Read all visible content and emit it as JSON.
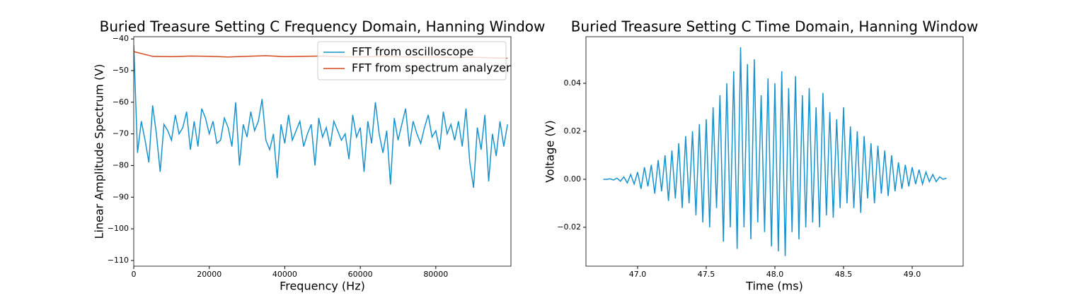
{
  "chart_data": [
    {
      "type": "line",
      "title": "Buried Treasure Setting C Frequency Domain, Hanning Window",
      "xlabel": "Frequency (Hz)",
      "ylabel": "Linear Amplitude Spectrum (V)",
      "xlim": [
        0,
        99900
      ],
      "ylim": [
        -111.8,
        -39.3
      ],
      "xticks": [
        0,
        20000,
        40000,
        60000,
        80000
      ],
      "yticks": [
        {
          "value": -40,
          "label": "−40"
        },
        {
          "value": -50,
          "label": "−50"
        },
        {
          "value": -60,
          "label": "−60"
        },
        {
          "value": -70,
          "label": "−70"
        },
        {
          "value": -80,
          "label": "−80"
        },
        {
          "value": -90,
          "label": "−90"
        },
        {
          "value": -100,
          "label": "−100"
        },
        {
          "value": -110,
          "label": "−110"
        }
      ],
      "legend": "upper right",
      "series": [
        {
          "name": "FFT from oscilloscope",
          "color": "#1693ce",
          "x": [
            0,
            1000,
            2000,
            3000,
            4000,
            5000,
            6000,
            7000,
            8000,
            9000,
            10000,
            11000,
            12000,
            13000,
            14000,
            15000,
            16000,
            17000,
            18000,
            19000,
            20000,
            21000,
            22000,
            23000,
            24000,
            25000,
            26000,
            27000,
            28000,
            29000,
            30000,
            31000,
            32000,
            33000,
            34000,
            35000,
            36000,
            37000,
            38000,
            39000,
            40000,
            41000,
            42000,
            43000,
            44000,
            45000,
            46000,
            47000,
            48000,
            49000,
            50000,
            51000,
            52000,
            53000,
            54000,
            55000,
            56000,
            57000,
            58000,
            59000,
            60000,
            61000,
            62000,
            63000,
            64000,
            65000,
            66000,
            67000,
            68000,
            69000,
            70000,
            71000,
            72000,
            73000,
            74000,
            75000,
            76000,
            77000,
            78000,
            79000,
            80000,
            81000,
            82000,
            83000,
            84000,
            85000,
            86000,
            87000,
            88000,
            89000,
            90000,
            91000,
            92000,
            93000,
            94000,
            95000,
            96000,
            97000,
            98000,
            99000
          ],
          "values": [
            -42,
            -76,
            -66,
            -72,
            -79,
            -61,
            -70,
            -82,
            -67,
            -69,
            -72,
            -64,
            -70,
            -68,
            -63,
            -75,
            -66,
            -74,
            -62,
            -65,
            -70,
            -66,
            -73,
            -72,
            -65,
            -68,
            -74,
            -60,
            -80,
            -67,
            -71,
            -63,
            -69,
            -66,
            -59,
            -72,
            -75,
            -70,
            -84,
            -67,
            -73,
            -64,
            -72,
            -69,
            -66,
            -74,
            -70,
            -67,
            -80,
            -65,
            -71,
            -68,
            -74,
            -66,
            -69,
            -72,
            -70,
            -78,
            -64,
            -71,
            -68,
            -82,
            -66,
            -73,
            -60,
            -70,
            -76,
            -69,
            -86,
            -65,
            -72,
            -67,
            -62,
            -74,
            -66,
            -70,
            -73,
            -68,
            -64,
            -71,
            -69,
            -75,
            -63,
            -70,
            -67,
            -72,
            -66,
            -74,
            -62,
            -79,
            -87,
            -68,
            -75,
            -64,
            -85,
            -70,
            -77,
            -66,
            -74,
            -67
          ]
        },
        {
          "name": "FFT from spectrum analyzer",
          "color": "#d2491b",
          "x": [
            0,
            5000,
            10000,
            15000,
            20000,
            25000,
            30000,
            35000,
            40000,
            45000,
            50000,
            55000,
            60000,
            65000,
            70000,
            75000,
            80000,
            85000,
            90000,
            95000,
            99000
          ],
          "values": [
            -44,
            -45.5,
            -45.6,
            -45.4,
            -45.5,
            -45.7,
            -45.5,
            -45.3,
            -45.6,
            -45.5,
            -45.4,
            -45.6,
            -45.7,
            -45.5,
            -45.6,
            -45.8,
            -45.7,
            -45.9,
            -45.8,
            -46,
            -46.1
          ]
        }
      ]
    },
    {
      "type": "line",
      "title": "Buried Treasure Setting C Time Domain, Hanning Window",
      "xlabel": "Time (ms)",
      "ylabel": "Voltage (V)",
      "xlim": [
        46.624,
        49.371
      ],
      "ylim": [
        -0.0362,
        0.0594
      ],
      "xticks": [
        {
          "value": 47,
          "label": "47.0"
        },
        47.5,
        {
          "value": 48,
          "label": "48.0"
        },
        48.5,
        {
          "value": 49,
          "label": "49.0"
        }
      ],
      "yticks": [
        {
          "value": -0.02,
          "label": "−0.02"
        },
        {
          "value": 0,
          "label": "0.00"
        },
        0.02,
        0.04
      ],
      "series": [
        {
          "color": "#1693ce",
          "x": [
            46.75,
            46.775,
            46.8,
            46.825,
            46.85,
            46.875,
            46.9,
            46.925,
            46.95,
            46.975,
            47,
            47.025,
            47.05,
            47.075,
            47.1,
            47.125,
            47.15,
            47.175,
            47.2,
            47.225,
            47.25,
            47.275,
            47.3,
            47.325,
            47.35,
            47.375,
            47.4,
            47.425,
            47.45,
            47.475,
            47.5,
            47.525,
            47.55,
            47.575,
            47.6,
            47.625,
            47.65,
            47.675,
            47.7,
            47.725,
            47.75,
            47.775,
            47.8,
            47.825,
            47.85,
            47.875,
            47.9,
            47.925,
            47.95,
            47.975,
            48,
            48.025,
            48.05,
            48.075,
            48.1,
            48.125,
            48.15,
            48.175,
            48.2,
            48.225,
            48.25,
            48.275,
            48.3,
            48.325,
            48.35,
            48.375,
            48.4,
            48.425,
            48.45,
            48.475,
            48.5,
            48.525,
            48.55,
            48.575,
            48.6,
            48.625,
            48.65,
            48.675,
            48.7,
            48.725,
            48.75,
            48.775,
            48.8,
            48.825,
            48.85,
            48.875,
            48.9,
            48.925,
            48.95,
            48.975,
            49,
            49.025,
            49.05,
            49.075,
            49.1,
            49.125,
            49.15,
            49.175,
            49.2,
            49.225,
            49.25
          ],
          "values": [
            0,
            0,
            0.0002,
            -0.0003,
            0.0005,
            -0.0008,
            0.001,
            -0.0015,
            0.002,
            -0.002,
            0.003,
            -0.004,
            0.005,
            -0.003,
            0.006,
            -0.006,
            0.008,
            -0.005,
            0.01,
            -0.009,
            0.012,
            -0.008,
            0.015,
            -0.012,
            0.018,
            -0.01,
            0.02,
            -0.015,
            0.023,
            -0.018,
            0.025,
            -0.02,
            0.03,
            -0.012,
            0.035,
            -0.026,
            0.04,
            -0.02,
            0.045,
            -0.029,
            0.055,
            -0.02,
            0.048,
            -0.025,
            0.05,
            -0.018,
            0.035,
            -0.022,
            0.042,
            -0.028,
            0.04,
            -0.03,
            0.045,
            -0.032,
            0.038,
            -0.022,
            0.043,
            -0.025,
            0.035,
            -0.02,
            0.038,
            -0.018,
            0.03,
            -0.02,
            0.036,
            -0.015,
            0.028,
            -0.016,
            0.025,
            -0.012,
            0.03,
            -0.01,
            0.022,
            -0.012,
            0.02,
            -0.014,
            0.018,
            -0.008,
            0.015,
            -0.01,
            0.014,
            -0.006,
            0.012,
            -0.007,
            0.01,
            -0.005,
            0.007,
            -0.004,
            0.006,
            -0.003,
            0.005,
            -0.002,
            0.004,
            -0.002,
            0.003,
            -0.001,
            0.002,
            -0.001,
            0.001,
            0,
            0.0005
          ]
        }
      ]
    }
  ]
}
